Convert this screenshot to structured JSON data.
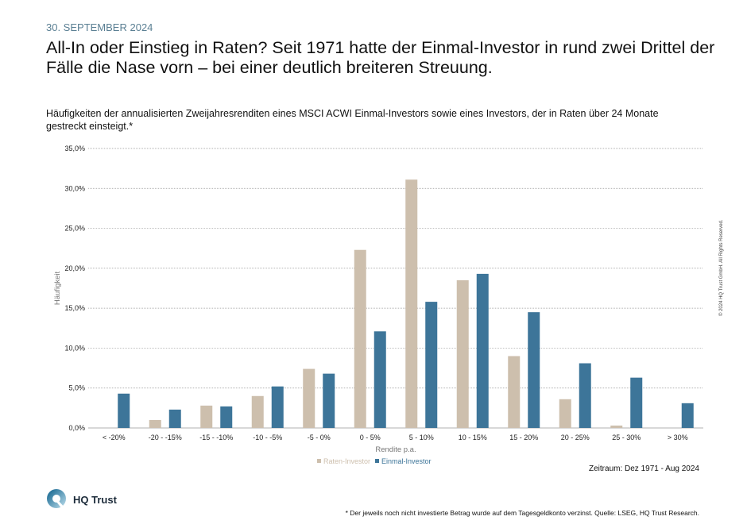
{
  "header": {
    "date": "30. SEPTEMBER 2024",
    "title": "All-In oder Einstieg in Raten? Seit 1971 hatte der Einmal-Investor in rund zwei Drittel der Fälle die Nase vorn – bei einer deutlich breiteren Streuung.",
    "subtitle": "Häufigkeiten der annualisierten Zweijahresrenditen eines MSCI ACWI Einmal-Investors sowie eines Investors, der in Raten über 24 Monate gestreckt einsteigt.*"
  },
  "chart_data": {
    "type": "bar",
    "categories": [
      "< -20%",
      "-20 - -15%",
      "-15 - -10%",
      "-10 - -5%",
      "-5 - 0%",
      "0 - 5%",
      "5 - 10%",
      "10 - 15%",
      "15 - 20%",
      "20 - 25%",
      "25 - 30%",
      "> 30%"
    ],
    "series": [
      {
        "name": "Raten-Investor",
        "color": "#cdbfad",
        "values": [
          0,
          1.0,
          2.8,
          4.0,
          7.4,
          22.3,
          31.1,
          18.5,
          9.0,
          3.6,
          0.3,
          0
        ]
      },
      {
        "name": "Einmal-Investor",
        "color": "#3d7599",
        "values": [
          4.3,
          2.3,
          2.7,
          5.2,
          6.8,
          12.1,
          15.8,
          19.3,
          14.5,
          8.1,
          6.3,
          3.1
        ]
      }
    ],
    "xlabel": "Rendite p.a.",
    "ylabel": "Häufigkeit",
    "ylim": [
      0,
      35
    ],
    "yticks": [
      "0,0%",
      "5,0%",
      "10,0%",
      "15,0%",
      "20,0%",
      "25,0%",
      "30,0%",
      "35,0%"
    ],
    "grid": true,
    "legend": "bottom-center"
  },
  "footer": {
    "period": "Zeitraum: Dez 1971 - Aug 2024",
    "note": "* Der jeweils noch nicht investierte Betrag wurde auf dem Tagesgeldkonto verzinst. Quelle: LSEG, HQ Trust Research.",
    "copyright": "© 2024 HQ Trust GmbH. All Rights Reserved.",
    "logo": "HQ Trust"
  }
}
